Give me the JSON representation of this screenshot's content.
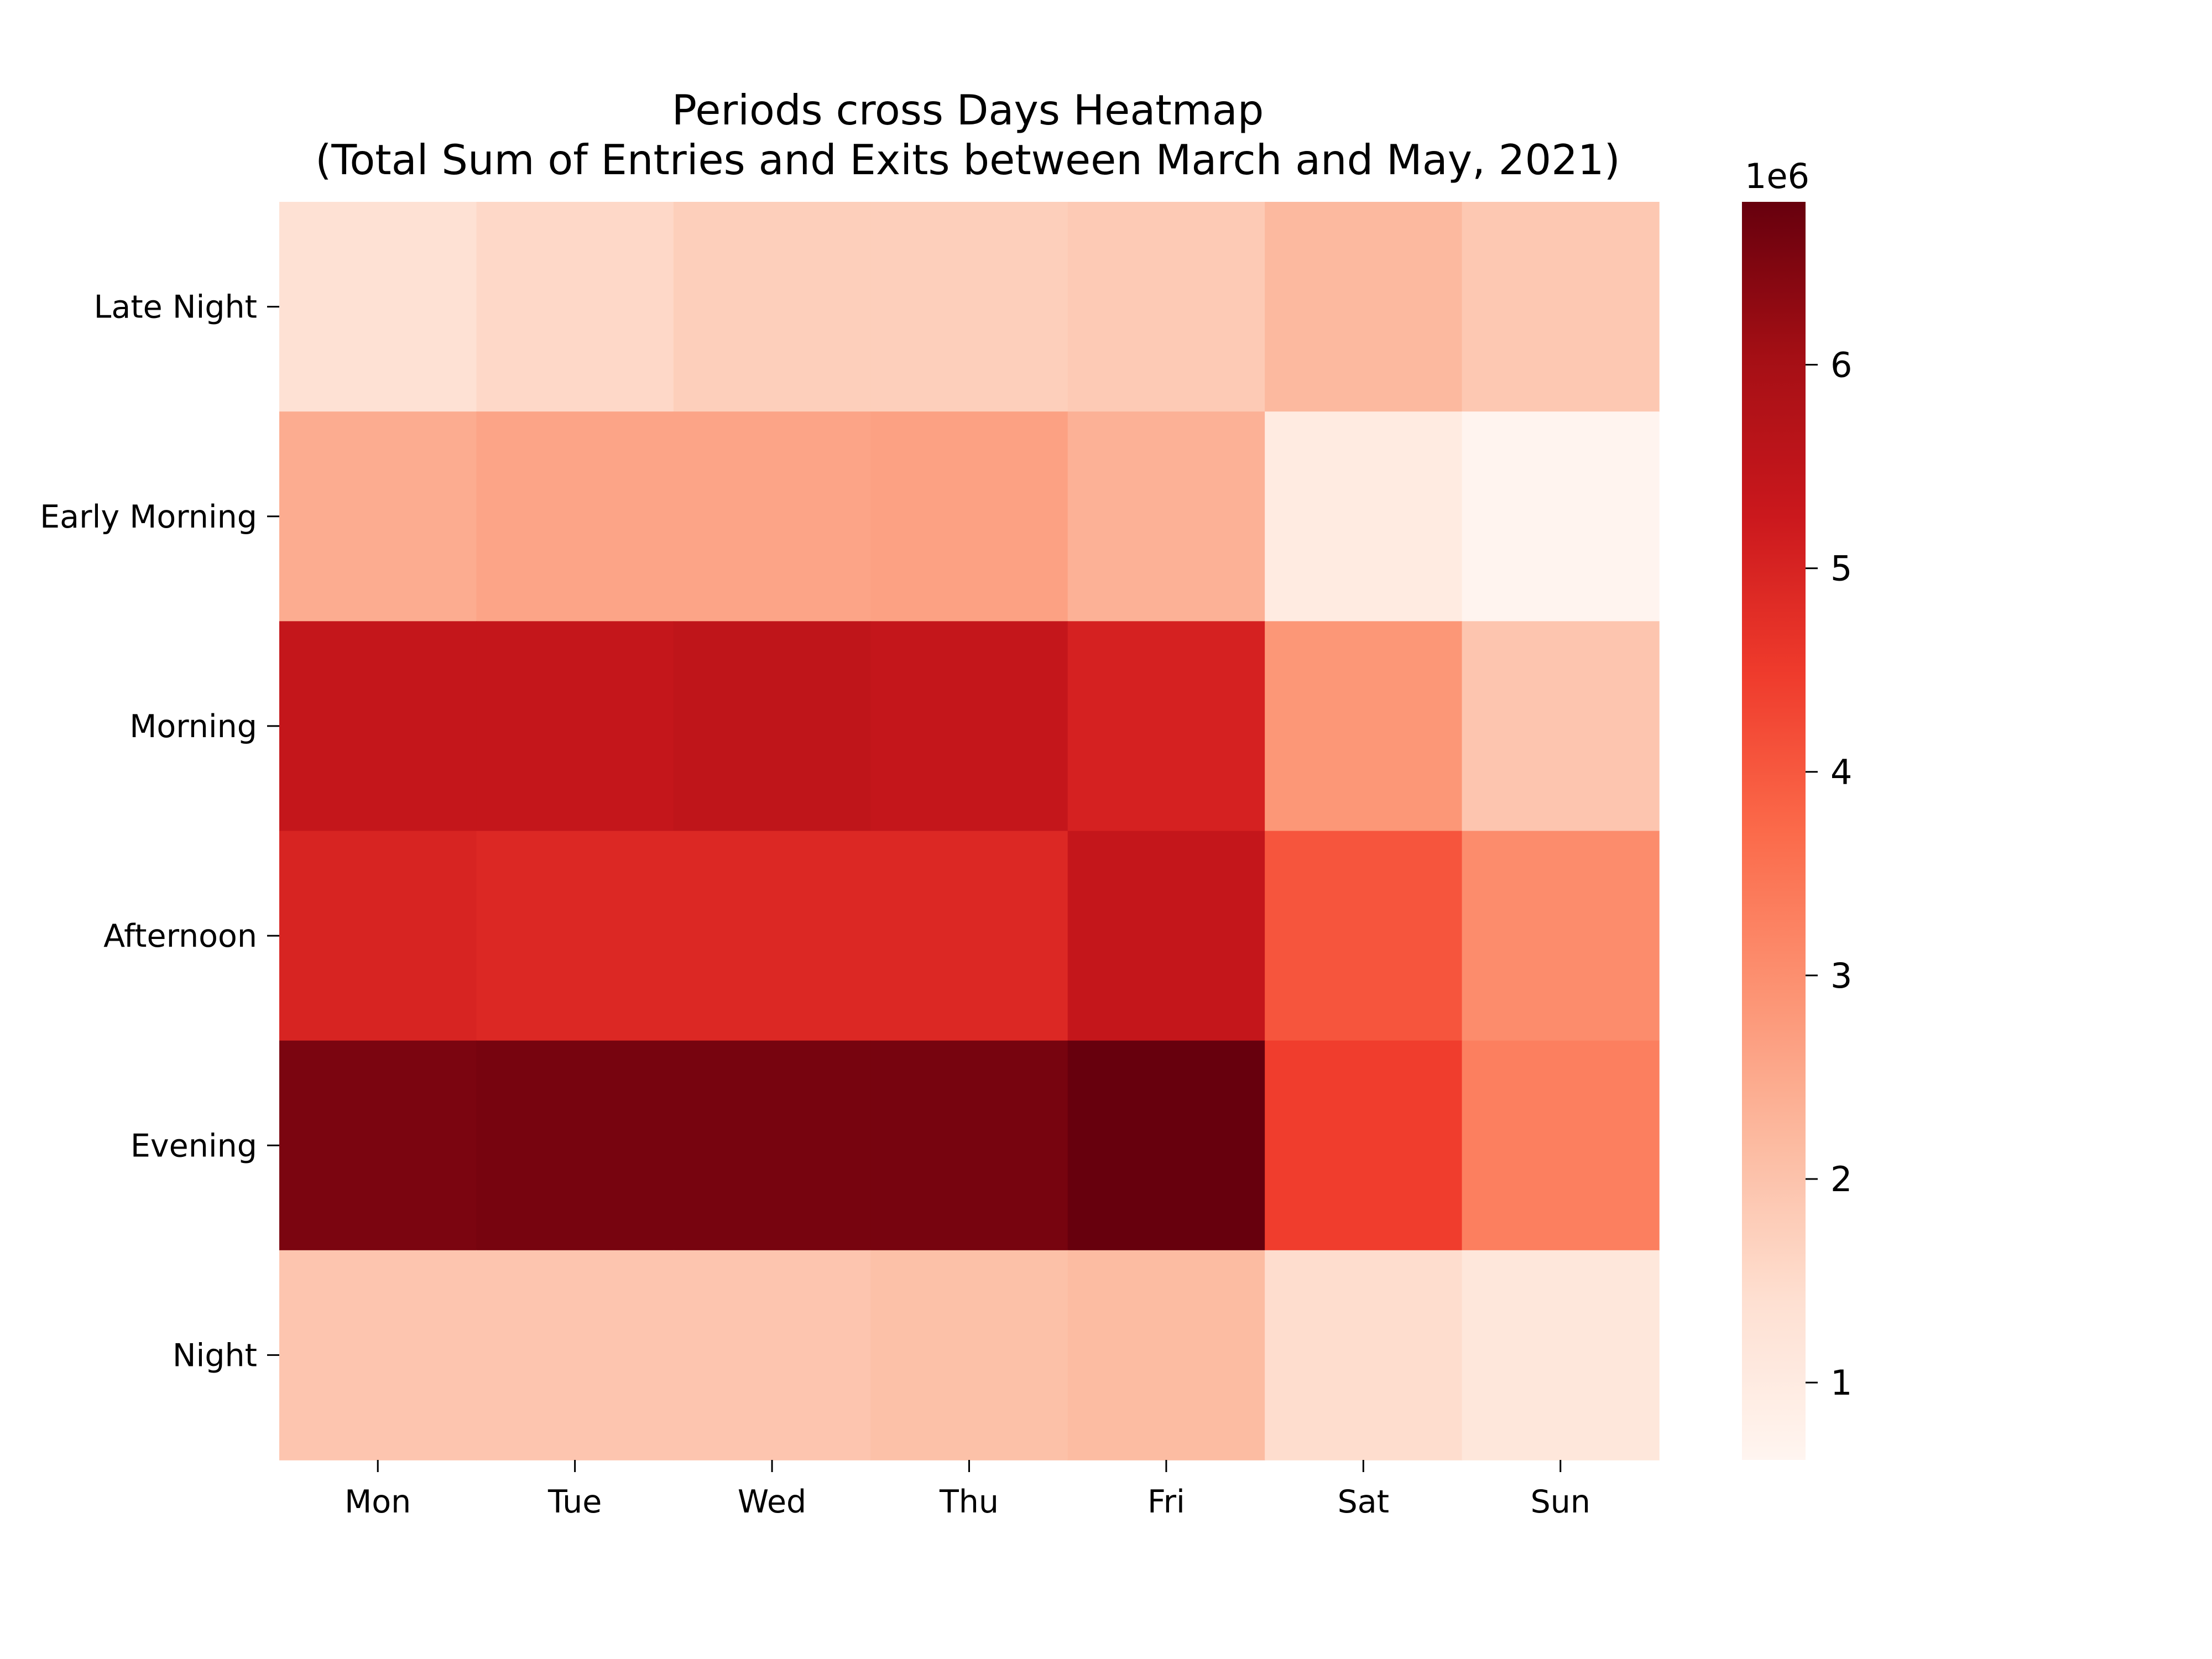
{
  "chart_data": {
    "type": "heatmap",
    "title_line1": "Periods cross Days Heatmap",
    "title_line2": "(Total Sum of Entries and Exits between March and May, 2021)",
    "xlabel": "",
    "ylabel": "",
    "x_categories": [
      "Mon",
      "Tue",
      "Wed",
      "Thu",
      "Fri",
      "Sat",
      "Sun"
    ],
    "y_categories": [
      "Late Night",
      "Early Morning",
      "Morning",
      "Afternoon",
      "Evening",
      "Night"
    ],
    "values": [
      [
        1.35,
        1.55,
        1.75,
        1.75,
        1.85,
        2.2,
        1.9
      ],
      [
        2.45,
        2.6,
        2.6,
        2.65,
        2.35,
        1.0,
        0.65
      ],
      [
        5.4,
        5.4,
        5.5,
        5.4,
        5.05,
        2.85,
        1.95
      ],
      [
        5.0,
        4.9,
        4.9,
        4.9,
        5.4,
        4.05,
        3.05
      ],
      [
        6.55,
        6.6,
        6.6,
        6.6,
        6.8,
        4.45,
        3.3
      ],
      [
        1.95,
        1.95,
        1.95,
        2.05,
        2.15,
        1.45,
        1.15
      ]
    ],
    "colorscale": "Reds",
    "colorbar": {
      "min": 0.62,
      "max": 6.8,
      "ticks": [
        1,
        2,
        3,
        4,
        5,
        6
      ],
      "offset_text": "1e6"
    }
  }
}
